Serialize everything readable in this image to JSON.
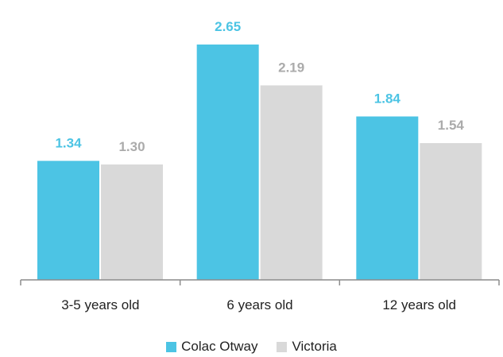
{
  "chart_data": {
    "type": "bar",
    "categories": [
      "3-5 years old",
      "6 years old",
      "12 years old"
    ],
    "series": [
      {
        "name": "Colac Otway",
        "values": [
          1.34,
          2.65,
          1.84
        ],
        "color": "#4CC4E4",
        "label_color": "#4CC4E4"
      },
      {
        "name": "Victoria",
        "values": [
          1.3,
          2.19,
          1.54
        ],
        "color": "#D9D9D9",
        "label_color": "#ABABAB"
      }
    ],
    "value_labels": [
      [
        "1.34",
        "2.65",
        "1.84"
      ],
      [
        "1.30",
        "2.19",
        "1.54"
      ]
    ],
    "title": "",
    "xlabel": "",
    "ylabel": "",
    "ylim": [
      0,
      2.8
    ],
    "grid": false,
    "legend": "bottom-center"
  }
}
